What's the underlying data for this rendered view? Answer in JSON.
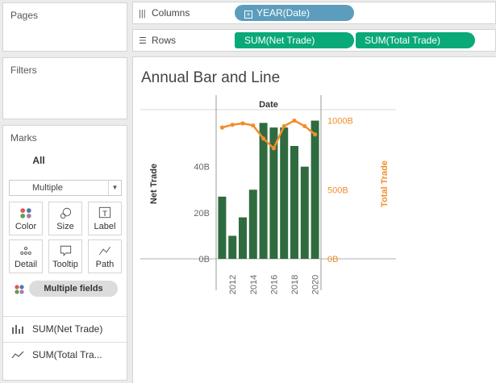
{
  "panels": {
    "pages_title": "Pages",
    "filters_title": "Filters",
    "marks_title": "Marks"
  },
  "shelves": {
    "columns_label": "Columns",
    "rows_label": "Rows",
    "columns_pill": "YEAR(Date)",
    "rows_pills": [
      "SUM(Net Trade)",
      "SUM(Total Trade)"
    ]
  },
  "marks": {
    "all_label": "All",
    "mark_type": "Multiple",
    "buttons": [
      "Color",
      "Size",
      "Label",
      "Detail",
      "Tooltip",
      "Path"
    ],
    "multiple_fields": "Multiple fields",
    "measures": [
      "SUM(Net Trade)",
      "SUM(Total Tra..."
    ]
  },
  "colors": {
    "bar": "#2f6b3f",
    "line": "#f28e2b",
    "shelf_blue": "#5c9dbd",
    "shelf_green": "#0aa978"
  },
  "chart_data": {
    "type": "bar",
    "title": "Annual Bar and Line",
    "header": "Date",
    "x": [
      2011,
      2012,
      2013,
      2014,
      2015,
      2016,
      2017,
      2018,
      2019,
      2020
    ],
    "x_tick_labels": [
      "2012",
      "2014",
      "2016",
      "2018",
      "2020"
    ],
    "series": [
      {
        "name": "Net Trade",
        "type": "bar",
        "axis": "left",
        "values": [
          27,
          10,
          18,
          30,
          59,
          57,
          57,
          49,
          40,
          60
        ]
      },
      {
        "name": "Total Trade",
        "type": "line",
        "axis": "right",
        "values": [
          950,
          970,
          980,
          965,
          870,
          800,
          960,
          1000,
          960,
          900
        ]
      }
    ],
    "left_axis": {
      "label": "Net Trade",
      "ticks": [
        "0B",
        "20B",
        "40B"
      ],
      "range": [
        0,
        63
      ]
    },
    "right_axis": {
      "label": "Total Trade",
      "ticks": [
        "0B",
        "500B",
        "1000B"
      ],
      "range": [
        0,
        1050
      ]
    }
  }
}
